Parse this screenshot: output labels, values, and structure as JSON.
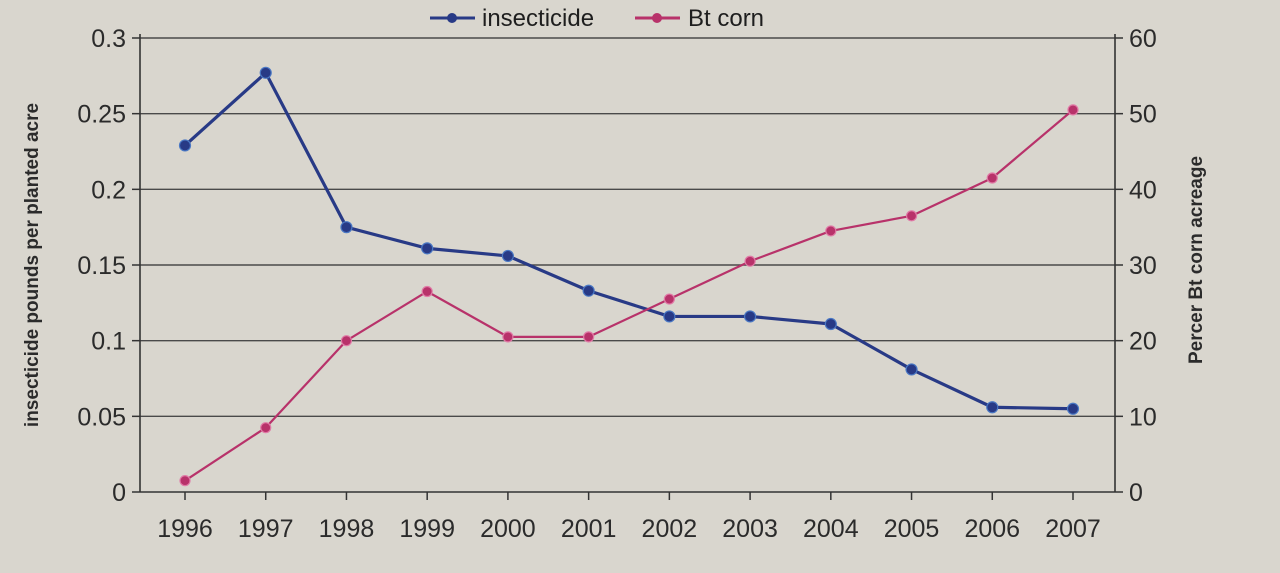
{
  "chart_data": {
    "type": "line",
    "categories": [
      "1996",
      "1997",
      "1998",
      "1999",
      "2000",
      "2001",
      "2002",
      "2003",
      "2004",
      "2005",
      "2006",
      "2007"
    ],
    "series": [
      {
        "name": "insecticide",
        "axis": "left",
        "color": "#283a86",
        "values": [
          0.229,
          0.277,
          0.175,
          0.161,
          0.156,
          0.133,
          0.116,
          0.116,
          0.111,
          0.081,
          0.056,
          0.055
        ]
      },
      {
        "name": "Bt corn",
        "axis": "right",
        "color": "#b8326a",
        "values": [
          1.5,
          8.5,
          20,
          26.5,
          20.5,
          20.5,
          25.5,
          30.5,
          34.5,
          36.5,
          41.5,
          50.5
        ]
      }
    ],
    "ylabel": "insecticide pounds per planted acre",
    "y2label": "Percer  Bt corn acreage",
    "ylim": [
      0,
      0.3
    ],
    "y2lim": [
      0,
      60
    ],
    "yticks": [
      "0",
      "0.05",
      "0.1",
      "0.15",
      "0.2",
      "0.25",
      "0.3"
    ],
    "y2ticks": [
      "0",
      "10",
      "20",
      "30",
      "40",
      "50",
      "60"
    ],
    "grid": true,
    "legend_position": "top-center"
  }
}
